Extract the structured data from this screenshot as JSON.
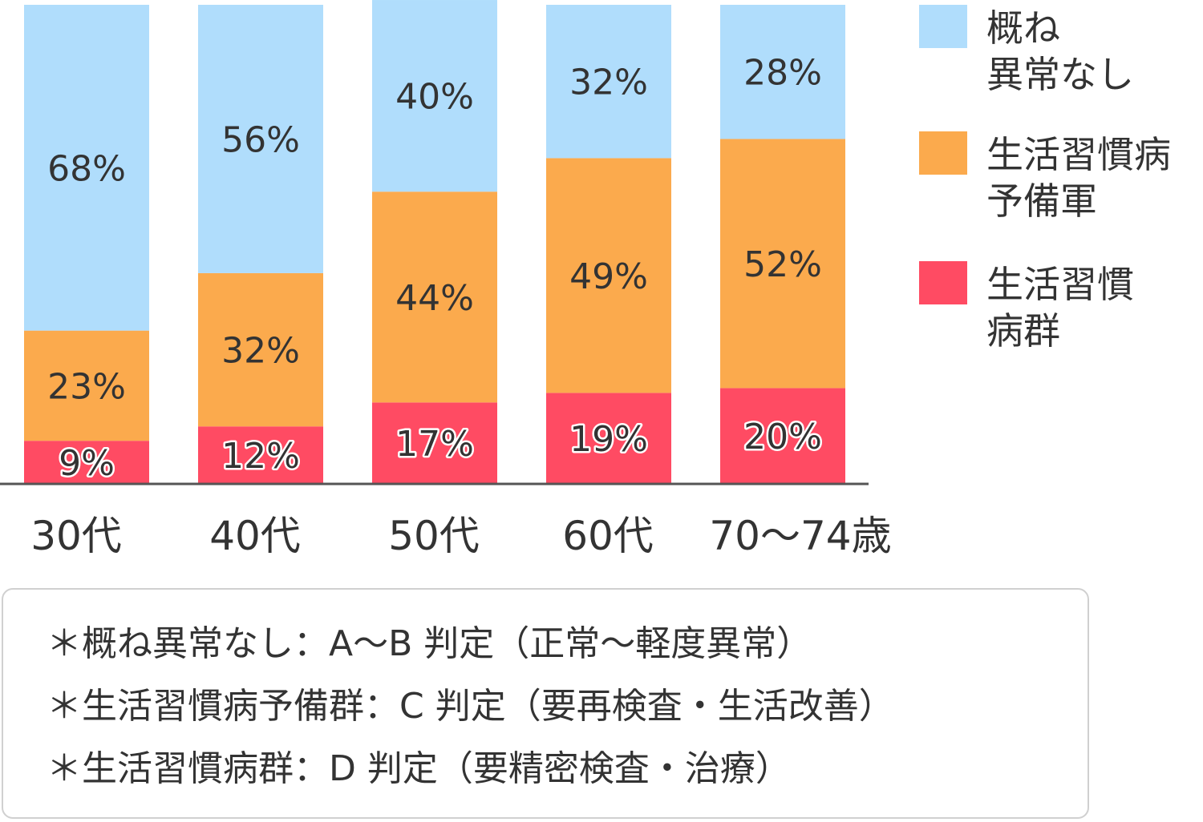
{
  "chart_data": {
    "type": "bar",
    "stacked": true,
    "normalized_percent": true,
    "categories": [
      "30代",
      "40代",
      "50代",
      "60代",
      "70〜74歳"
    ],
    "series": [
      {
        "name": "生活習慣病群",
        "color": "#ff4b63",
        "values": [
          9,
          12,
          17,
          19,
          20
        ],
        "labels": [
          "9%",
          "12%",
          "17%",
          "19%",
          "20%"
        ]
      },
      {
        "name": "生活習慣病予備軍",
        "color": "#fbaa4d",
        "values": [
          23,
          32,
          44,
          49,
          52
        ],
        "labels": [
          "23%",
          "32%",
          "44%",
          "49%",
          "52%"
        ]
      },
      {
        "name": "概ね異常なし",
        "color": "#b0ddfc",
        "values": [
          68,
          56,
          40,
          32,
          28
        ],
        "labels": [
          "68%",
          "56%",
          "40%",
          "32%",
          "28%"
        ]
      }
    ],
    "ylim": [
      0,
      100
    ],
    "grid": false,
    "legend_position": "right"
  },
  "legend": [
    {
      "lines": [
        "概ね",
        "異常なし"
      ],
      "color": "#b0ddfc"
    },
    {
      "lines": [
        "生活習慣病",
        "予備軍"
      ],
      "color": "#fbaa4d"
    },
    {
      "lines": [
        "生活習慣",
        "病群"
      ],
      "color": "#ff4b63"
    }
  ],
  "notes": [
    "＊概ね異常なし：A〜B 判定（正常〜軽度異常）",
    "＊生活習慣病予備群：C 判定（要再検査・生活改善）",
    "＊生活習慣病群：D 判定（要精密検査・治療）"
  ]
}
